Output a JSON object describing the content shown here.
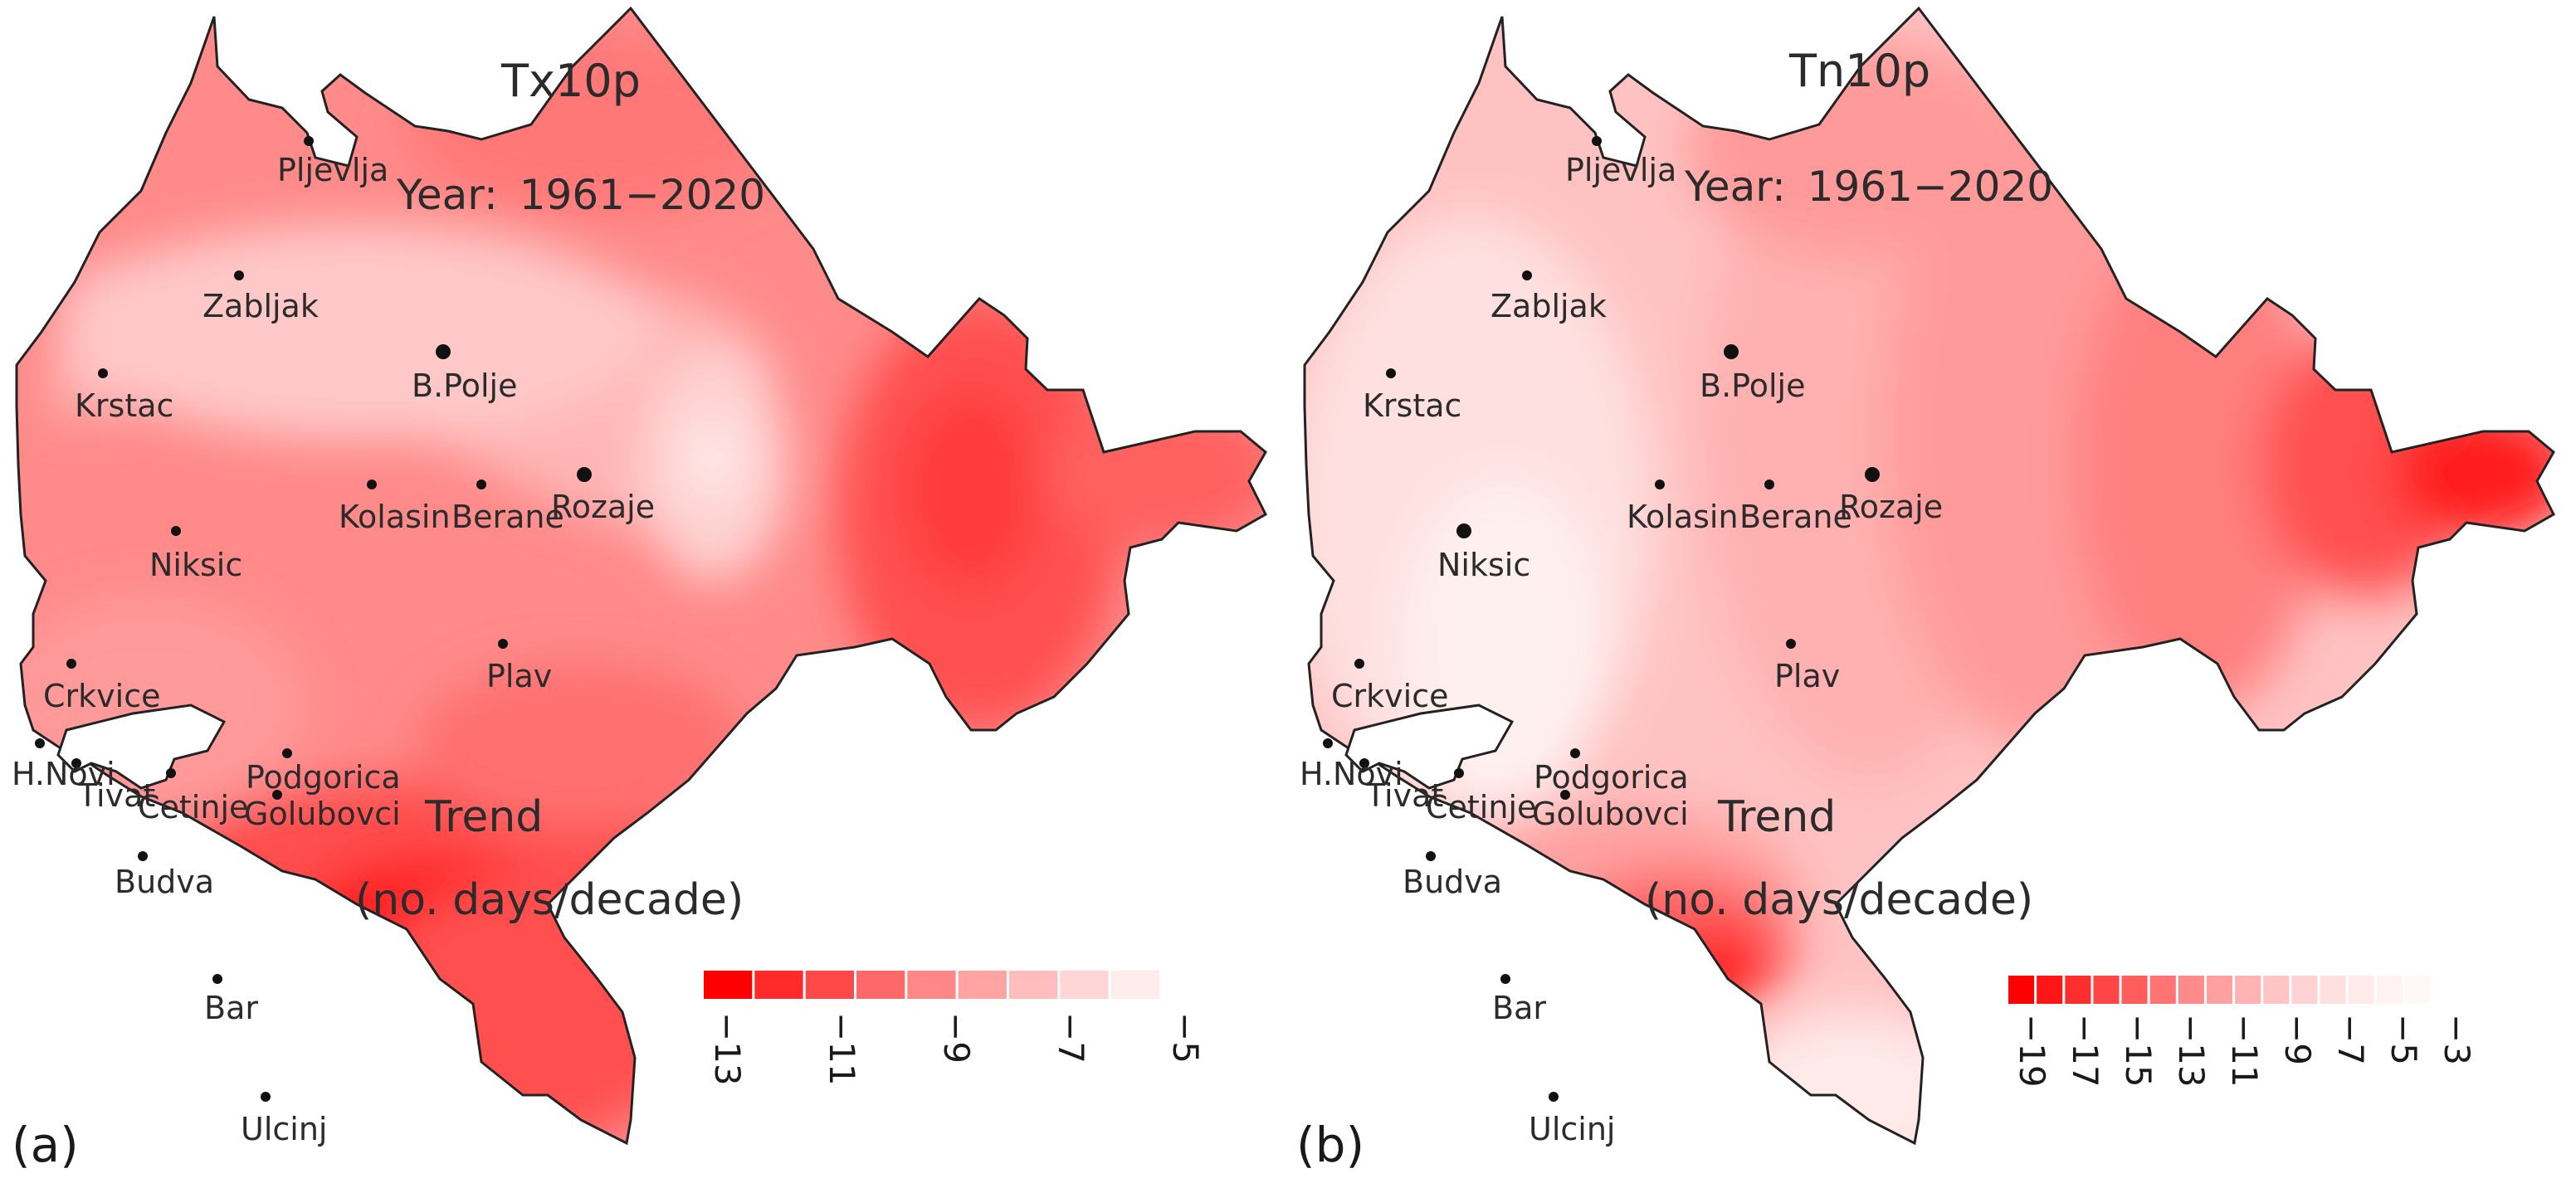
{
  "figure": {
    "panels": [
      {
        "id": "a",
        "panel_label": "(a)",
        "index_name": "Tx10p",
        "year_label": "Year:",
        "year_range": "1961−2020",
        "legend_title": "Trend",
        "legend_unit": "(no. days/decade)",
        "legend_ticks": [
          "−13",
          "−11",
          "−9",
          "−7",
          "−5"
        ],
        "legend_colors": [
          "#ff0000",
          "#ff2a2a",
          "#ff4848",
          "#ff6868",
          "#ff8787",
          "#ffa3a3",
          "#ffbdbd",
          "#ffd6d6",
          "#ffecec"
        ],
        "cities": [
          {
            "name": "Pljevlja"
          },
          {
            "name": "Zabljak"
          },
          {
            "name": "Krstac"
          },
          {
            "name": "B.Polje"
          },
          {
            "name": "Kolasin"
          },
          {
            "name": "Berane"
          },
          {
            "name": "Rozaje"
          },
          {
            "name": "Niksic"
          },
          {
            "name": "Crkvice"
          },
          {
            "name": "Plav"
          },
          {
            "name": "H.Novi"
          },
          {
            "name": "Tivat"
          },
          {
            "name": "Cetinje"
          },
          {
            "name": "Podgorica"
          },
          {
            "name": "Golubovci"
          },
          {
            "name": "Budva"
          },
          {
            "name": "Bar"
          },
          {
            "name": "Ulcinj"
          }
        ]
      },
      {
        "id": "b",
        "panel_label": "(b)",
        "index_name": "Tn10p",
        "year_label": "Year:",
        "year_range": "1961−2020",
        "legend_title": "Trend",
        "legend_unit": "(no. days/decade)",
        "legend_ticks": [
          "−19",
          "−17",
          "−15",
          "−13",
          "−11",
          "−9",
          "−7",
          "−5",
          "−3"
        ],
        "legend_colors": [
          "#ff0000",
          "#ff1717",
          "#ff2e2e",
          "#ff4545",
          "#ff5c5c",
          "#ff7373",
          "#ff8a8a",
          "#ffa0a0",
          "#ffb3b3",
          "#ffc4c4",
          "#ffd3d3",
          "#ffe0e0",
          "#ffeaea",
          "#fff2f2",
          "#fff8f8"
        ],
        "cities": [
          {
            "name": "Pljevlja"
          },
          {
            "name": "Zabljak"
          },
          {
            "name": "Krstac"
          },
          {
            "name": "B.Polje"
          },
          {
            "name": "Kolasin"
          },
          {
            "name": "Berane"
          },
          {
            "name": "Rozaje"
          },
          {
            "name": "Niksic"
          },
          {
            "name": "Crkvice"
          },
          {
            "name": "Plav"
          },
          {
            "name": "H.Novi"
          },
          {
            "name": "Tivat"
          },
          {
            "name": "Cetinje"
          },
          {
            "name": "Podgorica"
          },
          {
            "name": "Golubovci"
          },
          {
            "name": "Budva"
          },
          {
            "name": "Bar"
          },
          {
            "name": "Ulcinj"
          }
        ]
      }
    ]
  }
}
